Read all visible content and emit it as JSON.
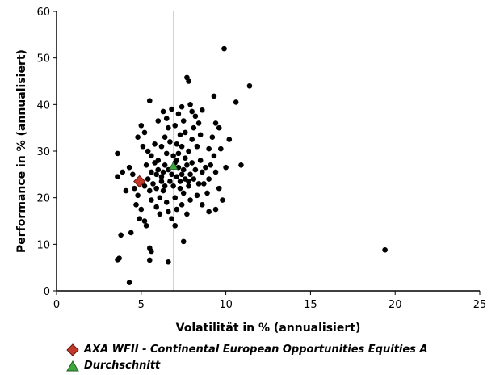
{
  "chart_data": {
    "type": "scatter",
    "xlabel": "Volatilität in % (annualisiert)",
    "ylabel": "Performance in % (annualisiert)",
    "xlim": [
      0,
      25
    ],
    "ylim": [
      0,
      60
    ],
    "xticks": [
      0,
      5,
      10,
      15,
      20,
      25
    ],
    "yticks": [
      0,
      10,
      20,
      30,
      40,
      50,
      60
    ],
    "grid": false,
    "legend_position": "bottom",
    "highlight": {
      "name": "AXA WFII - Continental European Opportunities Equities A",
      "x": 4.9,
      "y": 23.5,
      "color": "#c0392b",
      "marker": "diamond"
    },
    "average": {
      "name": "Durchschnitt",
      "x": 6.9,
      "y": 26.8,
      "color": "#3ca83c",
      "marker": "triangle"
    },
    "series": [
      {
        "color": "#000000",
        "points": [
          [
            9.9,
            52
          ],
          [
            11.4,
            44
          ],
          [
            10.6,
            40.5
          ],
          [
            5.5,
            40.8
          ],
          [
            7.7,
            45.8
          ],
          [
            7.8,
            45.0
          ],
          [
            10.2,
            32.5
          ],
          [
            10.9,
            27.0
          ],
          [
            19.4,
            8.8
          ],
          [
            4.3,
            1.8
          ],
          [
            3.6,
            6.7
          ],
          [
            3.7,
            7.0
          ],
          [
            6.6,
            6.2
          ],
          [
            7.5,
            10.6
          ],
          [
            3.8,
            12.0
          ],
          [
            4.4,
            12.5
          ],
          [
            5.5,
            9.2
          ],
          [
            5.6,
            8.5
          ],
          [
            5.5,
            6.6
          ],
          [
            3.6,
            29.5
          ],
          [
            3.9,
            25.5
          ],
          [
            4.3,
            26.5
          ],
          [
            3.6,
            24.5
          ],
          [
            4.1,
            21.5
          ],
          [
            4.6,
            22.0
          ],
          [
            4.8,
            20.5
          ],
          [
            5.0,
            17.5
          ],
          [
            4.9,
            15.5
          ],
          [
            5.2,
            15.0
          ],
          [
            5.3,
            14.0
          ],
          [
            5.0,
            35.5
          ],
          [
            5.2,
            34.0
          ],
          [
            4.8,
            33.0
          ],
          [
            5.1,
            31.0
          ],
          [
            5.4,
            30.0
          ],
          [
            5.6,
            29.0
          ],
          [
            5.8,
            27.5
          ],
          [
            5.9,
            25.0
          ],
          [
            5.7,
            23.0
          ],
          [
            5.5,
            21.5
          ],
          [
            5.6,
            19.5
          ],
          [
            5.9,
            18.0
          ],
          [
            6.1,
            16.5
          ],
          [
            6.2,
            23.5
          ],
          [
            6.3,
            25.5
          ],
          [
            6.0,
            28.0
          ],
          [
            6.2,
            31.0
          ],
          [
            6.4,
            33.0
          ],
          [
            6.0,
            36.5
          ],
          [
            6.5,
            37.0
          ],
          [
            6.6,
            35.0
          ],
          [
            6.7,
            32.0
          ],
          [
            6.5,
            29.5
          ],
          [
            6.4,
            27.0
          ],
          [
            6.3,
            21.5
          ],
          [
            6.5,
            19.0
          ],
          [
            6.6,
            17.0
          ],
          [
            6.8,
            15.5
          ],
          [
            7.0,
            14.0
          ],
          [
            7.1,
            17.5
          ],
          [
            7.0,
            20.0
          ],
          [
            6.9,
            22.5
          ],
          [
            7.1,
            24.5
          ],
          [
            7.0,
            27.5
          ],
          [
            7.2,
            29.5
          ],
          [
            7.1,
            31.5
          ],
          [
            7.3,
            33.5
          ],
          [
            7.0,
            35.5
          ],
          [
            7.2,
            38.0
          ],
          [
            7.4,
            39.5
          ],
          [
            7.5,
            36.5
          ],
          [
            7.6,
            34.0
          ],
          [
            7.4,
            31.0
          ],
          [
            7.6,
            28.5
          ],
          [
            7.5,
            26.0
          ],
          [
            7.3,
            23.5
          ],
          [
            7.5,
            21.0
          ],
          [
            7.4,
            18.5
          ],
          [
            7.7,
            16.5
          ],
          [
            7.9,
            19.5
          ],
          [
            7.8,
            22.5
          ],
          [
            7.9,
            25.0
          ],
          [
            8.0,
            27.5
          ],
          [
            7.8,
            30.0
          ],
          [
            8.0,
            32.5
          ],
          [
            8.1,
            35.0
          ],
          [
            8.2,
            37.5
          ],
          [
            8.4,
            36.0
          ],
          [
            8.5,
            33.5
          ],
          [
            8.3,
            31.0
          ],
          [
            8.5,
            28.0
          ],
          [
            8.6,
            25.5
          ],
          [
            8.4,
            23.0
          ],
          [
            8.3,
            20.5
          ],
          [
            8.6,
            18.5
          ],
          [
            8.9,
            21.0
          ],
          [
            9.0,
            24.0
          ],
          [
            9.1,
            27.0
          ],
          [
            9.0,
            30.5
          ],
          [
            9.2,
            33.0
          ],
          [
            9.4,
            36.0
          ],
          [
            9.6,
            35.0
          ],
          [
            9.3,
            29.0
          ],
          [
            9.4,
            25.5
          ],
          [
            9.6,
            22.0
          ],
          [
            9.0,
            17.0
          ],
          [
            9.4,
            17.5
          ],
          [
            9.3,
            41.8
          ],
          [
            8.0,
            38.5
          ],
          [
            7.9,
            40.0
          ],
          [
            8.6,
            38.8
          ],
          [
            6.8,
            39.0
          ],
          [
            6.3,
            38.5
          ],
          [
            5.8,
            31.5
          ],
          [
            5.3,
            27.0
          ],
          [
            5.6,
            25.5
          ],
          [
            5.9,
            22.0
          ],
          [
            6.1,
            20.0
          ],
          [
            6.8,
            25.0
          ],
          [
            6.7,
            23.5
          ],
          [
            7.2,
            26.5
          ],
          [
            7.4,
            25.0
          ],
          [
            7.6,
            24.0
          ],
          [
            7.3,
            22.0
          ],
          [
            7.8,
            23.5
          ],
          [
            6.9,
            29.0
          ],
          [
            7.1,
            28.0
          ],
          [
            7.7,
            27.0
          ],
          [
            8.2,
            26.0
          ],
          [
            8.8,
            26.5
          ],
          [
            8.1,
            24.0
          ],
          [
            8.7,
            23.0
          ],
          [
            6.6,
            26.0
          ],
          [
            6.2,
            24.5
          ],
          [
            6.4,
            22.5
          ],
          [
            6.0,
            26.0
          ],
          [
            5.4,
            24.0
          ],
          [
            5.2,
            22.5
          ],
          [
            4.7,
            18.5
          ],
          [
            4.5,
            25.0
          ],
          [
            9.8,
            19.5
          ],
          [
            10.0,
            26.5
          ],
          [
            9.7,
            30.5
          ]
        ]
      }
    ]
  }
}
